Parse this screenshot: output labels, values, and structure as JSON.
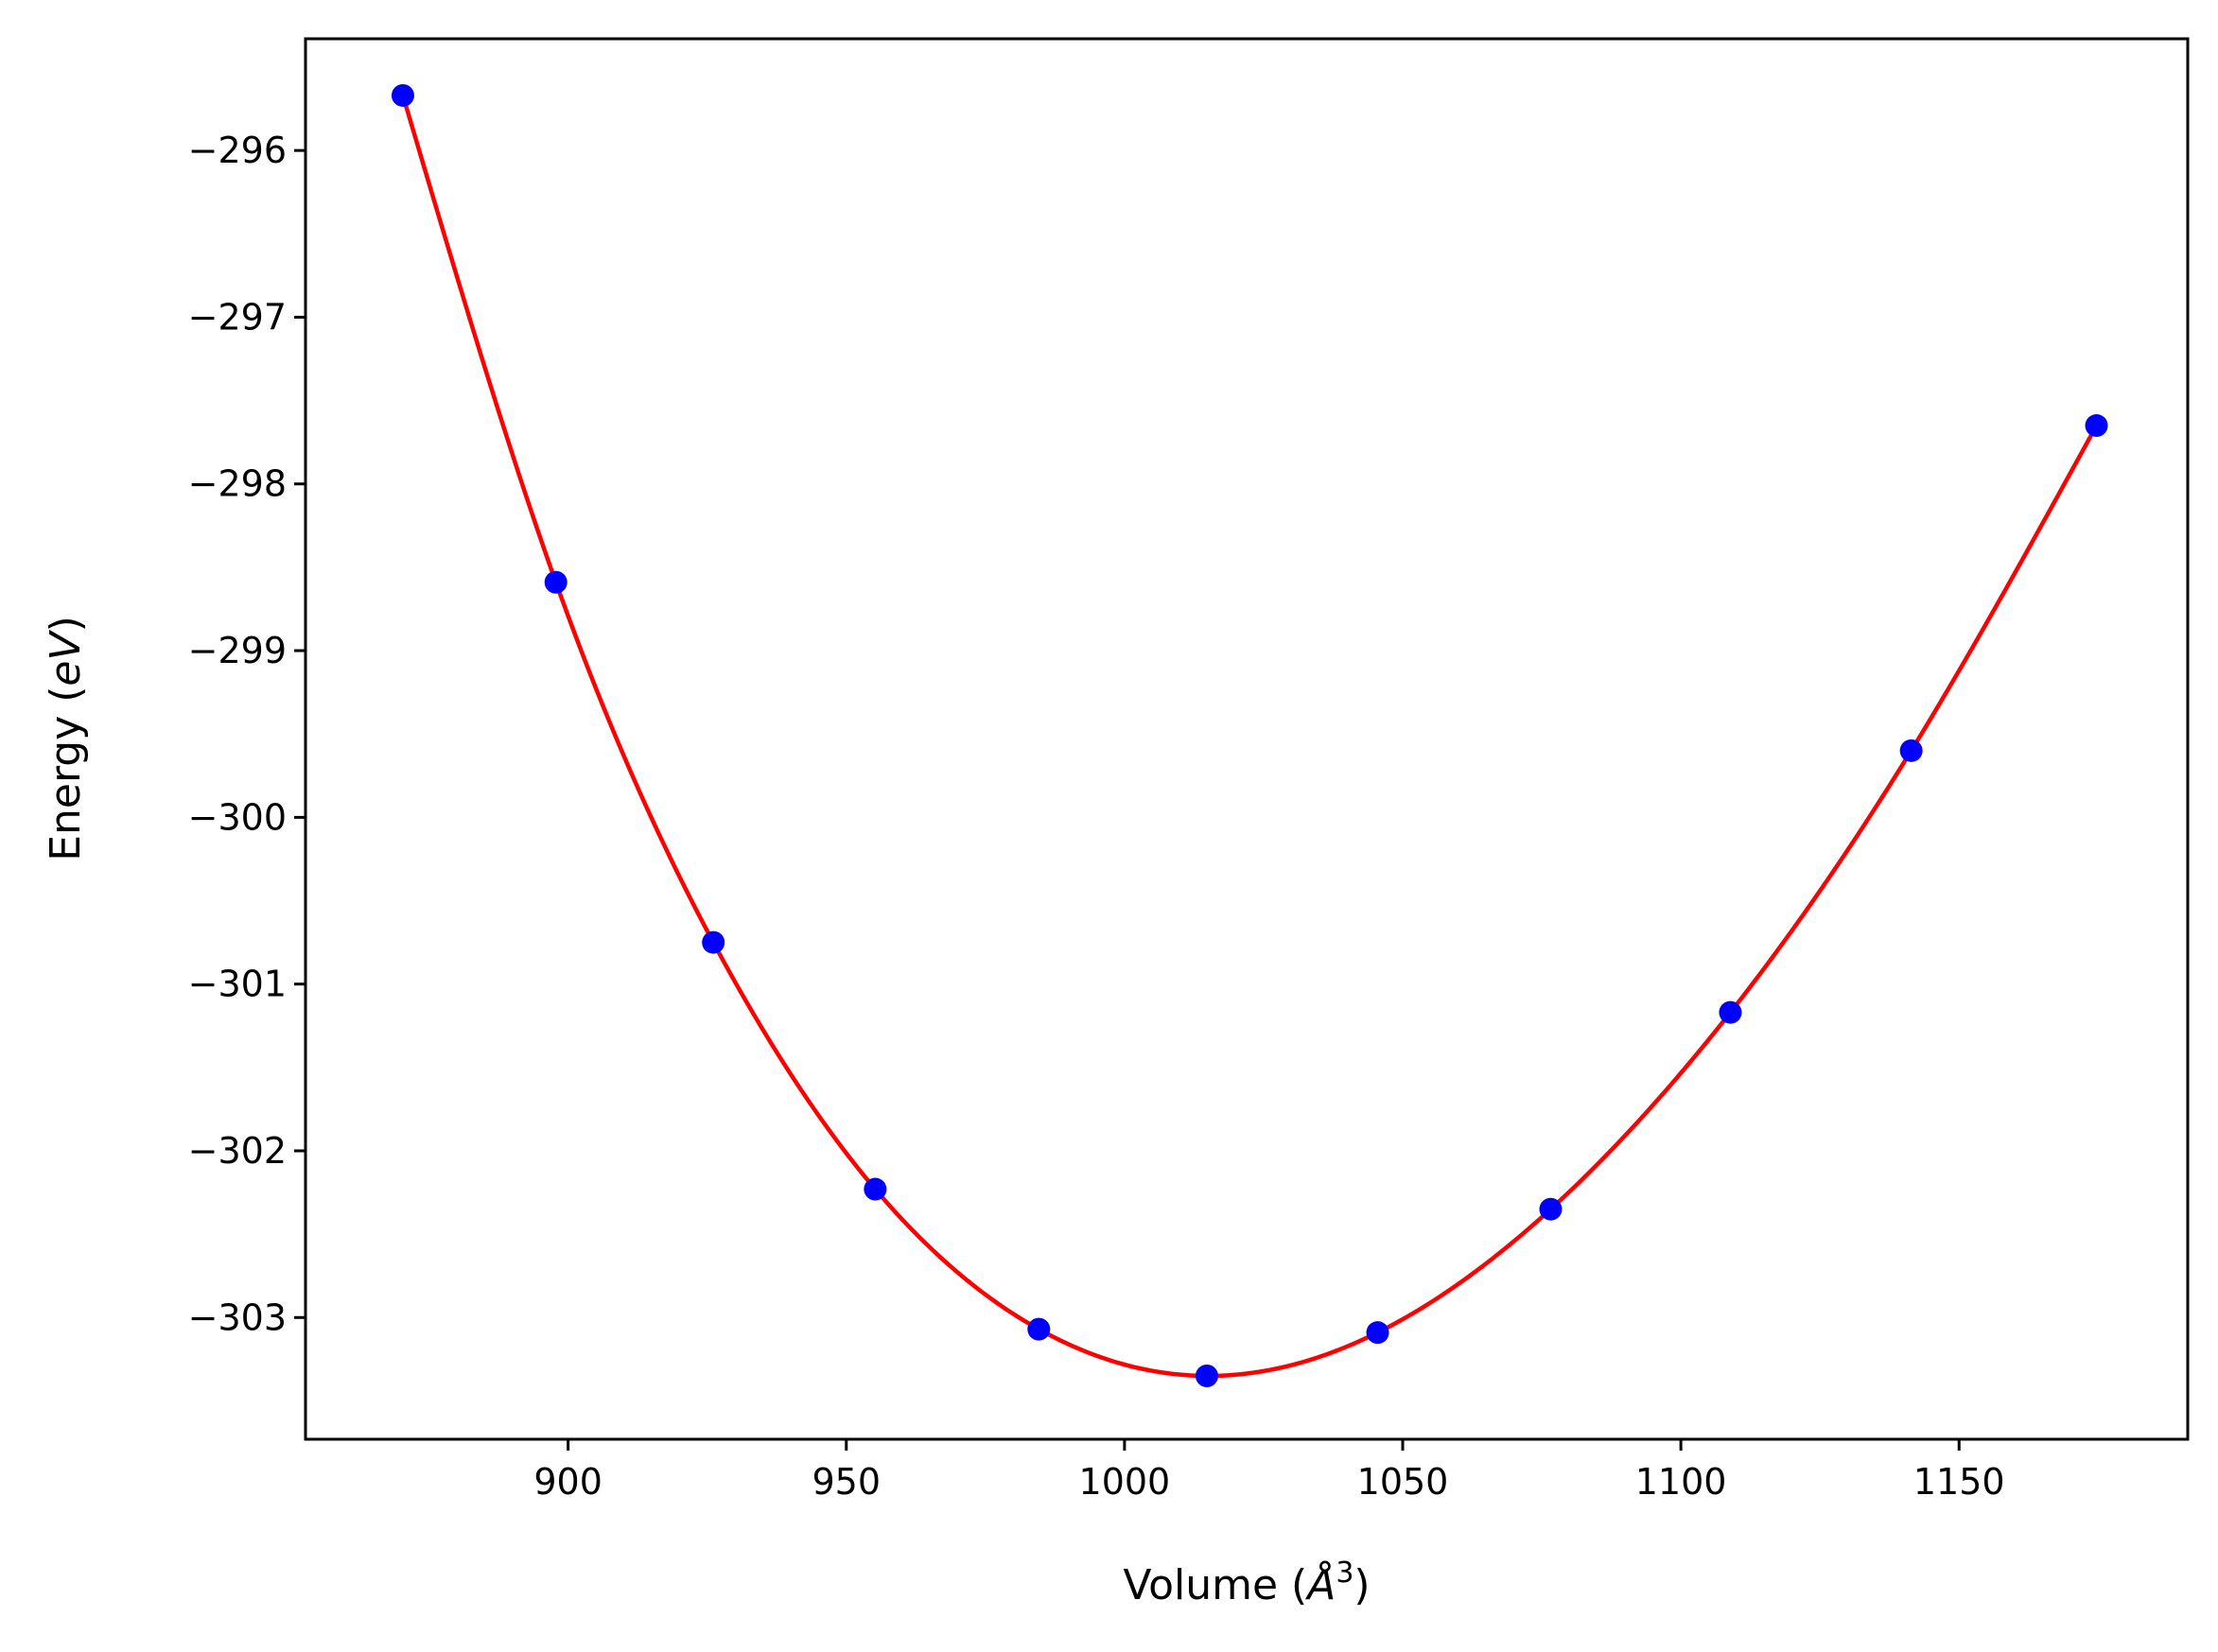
{
  "chart_data": {
    "type": "scatter",
    "title": "",
    "xlabel": "Volume",
    "xlabel_unit": "Å",
    "xlabel_unit_exponent": "3",
    "ylabel": "Energy",
    "ylabel_unit": "eV",
    "xlim": [
      852.8,
      1191.1
    ],
    "ylim": [
      -303.73,
      -295.33
    ],
    "xticks": [
      900,
      950,
      1000,
      1050,
      1100,
      1150
    ],
    "yticks": [
      -296,
      -297,
      -298,
      -299,
      -300,
      -301,
      -302,
      -303
    ],
    "xtick_labels": [
      "900",
      "950",
      "1000",
      "1050",
      "1100",
      "1150"
    ],
    "ytick_labels": [
      "−296",
      "−297",
      "−298",
      "−299",
      "−300",
      "−301",
      "−302",
      "−303"
    ],
    "grid": false,
    "legend": "none",
    "series": [
      {
        "kind": "points",
        "color": "#0000ff",
        "x": [
          870.3,
          897.8,
          926.1,
          955.2,
          984.6,
          1014.8,
          1045.5,
          1076.6,
          1108.9,
          1141.4,
          1174.7
        ],
        "y": [
          -295.67,
          -298.59,
          -300.75,
          -302.23,
          -303.07,
          -303.35,
          -303.09,
          -302.35,
          -301.17,
          -299.6,
          -297.65
        ]
      },
      {
        "kind": "fit-curve",
        "color": "#ff0000",
        "x": [
          870.3,
          897.8,
          926.1,
          955.2,
          984.6,
          1014.8,
          1045.5,
          1076.6,
          1108.9,
          1141.4,
          1174.7
        ],
        "y": [
          -295.67,
          -298.59,
          -300.75,
          -302.23,
          -303.07,
          -303.35,
          -303.09,
          -302.35,
          -301.17,
          -299.6,
          -297.65
        ]
      }
    ]
  }
}
